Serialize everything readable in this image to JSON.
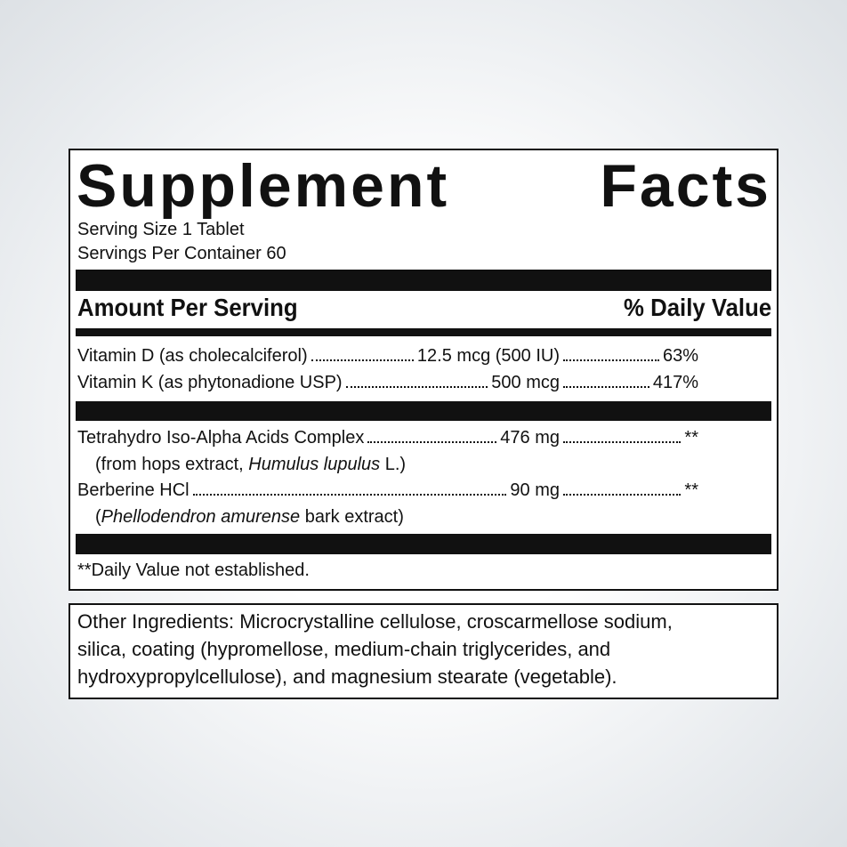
{
  "header": {
    "title_words": [
      "Supplement",
      "Facts"
    ],
    "serving_size": "Serving Size 1 Tablet",
    "servings_per_container": "Servings Per Container 60"
  },
  "columns": {
    "amount": "Amount Per Serving",
    "daily_value": "% Daily Value"
  },
  "sections": [
    {
      "rows": [
        {
          "name": "Vitamin D (as cholecalciferol)",
          "amount": "12.5 mcg (500 IU)",
          "daily_value": "63%"
        },
        {
          "name": "Vitamin K (as phytonadione USP)",
          "amount": "500 mcg",
          "daily_value": "417%"
        }
      ]
    },
    {
      "rows": [
        {
          "name": "Tetrahydro Iso-Alpha Acids Complex",
          "amount": "476 mg",
          "daily_value": "**",
          "note": [
            {
              "text": "(from hops extract, "
            },
            {
              "text": "Humulus lupulus",
              "italic": true
            },
            {
              "text": " L.)"
            }
          ]
        },
        {
          "name": "Berberine HCl",
          "amount": "90 mg",
          "daily_value": "**",
          "note": [
            {
              "text": "("
            },
            {
              "text": "Phellodendron amurense",
              "italic": true
            },
            {
              "text": " bark extract)"
            }
          ]
        }
      ]
    }
  ],
  "footnote": "**Daily Value not established.",
  "other_ingredients": [
    "Other Ingredients: Microcrystalline cellulose, croscarmellose sodium,",
    "silica, coating (hypromellose, medium-chain triglycerides, and",
    "hydroxypropylcellulose), and magnesium stearate (vegetable)."
  ]
}
